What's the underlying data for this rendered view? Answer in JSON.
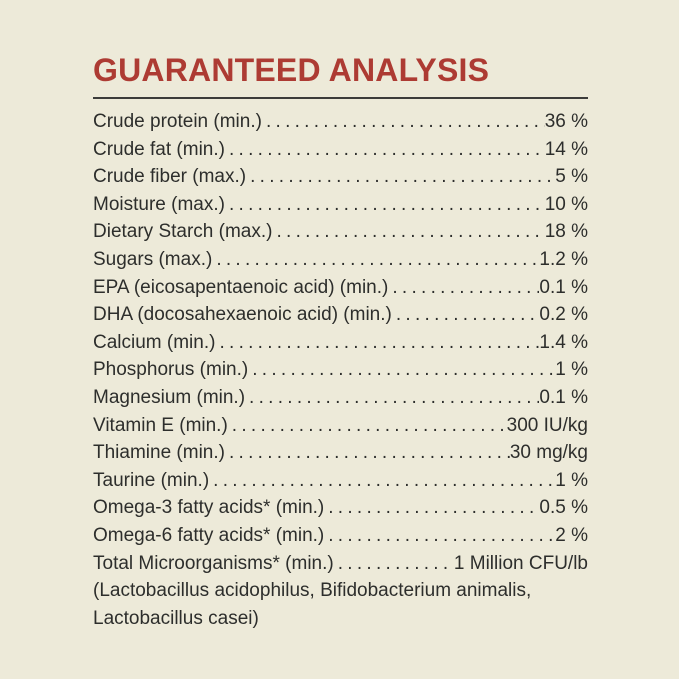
{
  "panel": {
    "title": "GUARANTEED ANALYSIS",
    "colors": {
      "background": "#EDEAD9",
      "title": "#AD3B33",
      "text": "#2D2E2C",
      "divider": "#3C3C3A"
    },
    "rows": [
      {
        "label": "Crude protein (min.)",
        "value": "36 %"
      },
      {
        "label": "Crude fat (min.)",
        "value": "14 %"
      },
      {
        "label": "Crude fiber (max.)",
        "value": "5 %"
      },
      {
        "label": "Moisture (max.)",
        "value": "10 %"
      },
      {
        "label": "Dietary Starch (max.)",
        "value": "18 %"
      },
      {
        "label": "Sugars (max.)",
        "value": "1.2 %"
      },
      {
        "label": "EPA (eicosapentaenoic acid) (min.)",
        "value": "0.1 %"
      },
      {
        "label": "DHA (docosahexaenoic acid) (min.)",
        "value": "0.2 %"
      },
      {
        "label": "Calcium (min.)",
        "value": "1.4 %"
      },
      {
        "label": "Phosphorus (min.)",
        "value": "1 %"
      },
      {
        "label": "Magnesium (min.)",
        "value": "0.1 %"
      },
      {
        "label": "Vitamin E (min.)",
        "value": "300 IU/kg"
      },
      {
        "label": "Thiamine (min.)",
        "value": "30 mg/kg"
      },
      {
        "label": "Taurine (min.)",
        "value": "1 %"
      },
      {
        "label": "Omega-3 fatty acids* (min.)",
        "value": "0.5 %"
      },
      {
        "label": "Omega-6 fatty acids* (min.)",
        "value": "2 %"
      },
      {
        "label": "Total Microorganisms* (min.)",
        "value": "1 Million CFU/lb"
      }
    ],
    "footnote_lines": [
      "(Lactobacillus acidophilus, Bifidobacterium animalis,",
      "Lactobacillus casei)"
    ]
  }
}
